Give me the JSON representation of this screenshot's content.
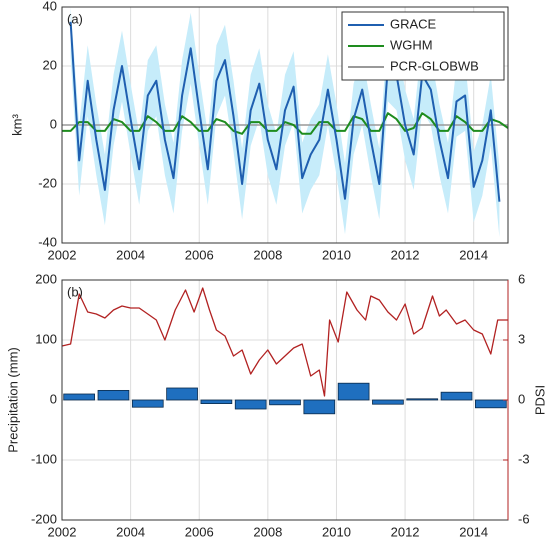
{
  "chart_data": [
    {
      "type": "line",
      "annotation": "(a)",
      "ylabel": "km³",
      "xlim": [
        2002,
        2015
      ],
      "xticks": [
        2002,
        2004,
        2006,
        2008,
        2010,
        2012,
        2014
      ],
      "ylim": [
        -40,
        40
      ],
      "yticks": [
        -40,
        -20,
        0,
        20,
        40
      ],
      "grid": true,
      "legend": "upper right",
      "series": [
        {
          "name": "GRACE",
          "color": "#1f5fb0",
          "error": 12,
          "x": [
            2002.25,
            2002.5,
            2002.75,
            2003,
            2003.25,
            2003.5,
            2003.75,
            2004,
            2004.25,
            2004.5,
            2004.75,
            2005,
            2005.25,
            2005.5,
            2005.75,
            2006,
            2006.25,
            2006.5,
            2006.75,
            2007,
            2007.25,
            2007.5,
            2007.75,
            2008,
            2008.25,
            2008.5,
            2008.75,
            2009,
            2009.25,
            2009.5,
            2009.75,
            2010,
            2010.25,
            2010.5,
            2010.75,
            2011,
            2011.25,
            2011.5,
            2011.75,
            2012,
            2012.25,
            2012.5,
            2012.75,
            2013,
            2013.25,
            2013.5,
            2013.75,
            2014,
            2014.25,
            2014.5,
            2014.75
          ],
          "values": [
            35,
            -12,
            15,
            -5,
            -22,
            5,
            20,
            2,
            -15,
            10,
            15,
            -5,
            -18,
            10,
            26,
            5,
            -15,
            15,
            22,
            3,
            -20,
            5,
            14,
            -5,
            -15,
            5,
            13,
            -18,
            -10,
            -5,
            12,
            -5,
            -25,
            2,
            12,
            -5,
            -20,
            20,
            17,
            0,
            -10,
            17,
            12,
            -5,
            -18,
            8,
            10,
            -21,
            -12,
            5,
            -26
          ]
        },
        {
          "name": "WGHM",
          "color": "#1e8c1e",
          "x": [
            2002,
            2002.25,
            2002.5,
            2002.75,
            2003,
            2003.25,
            2003.5,
            2003.75,
            2004,
            2004.25,
            2004.5,
            2004.75,
            2005,
            2005.25,
            2005.5,
            2005.75,
            2006,
            2006.25,
            2006.5,
            2006.75,
            2007,
            2007.25,
            2007.5,
            2007.75,
            2008,
            2008.25,
            2008.5,
            2008.75,
            2009,
            2009.25,
            2009.5,
            2009.75,
            2010,
            2010.25,
            2010.5,
            2010.75,
            2011,
            2011.25,
            2011.5,
            2011.75,
            2012,
            2012.25,
            2012.5,
            2012.75,
            2013,
            2013.25,
            2013.5,
            2013.75,
            2014,
            2014.25,
            2014.5,
            2014.75,
            2015
          ],
          "values": [
            -2,
            -2,
            1,
            1,
            -2,
            -2,
            2,
            1,
            -2,
            -2,
            3,
            1,
            -2,
            -2,
            3,
            1,
            -2,
            -2,
            2,
            1,
            -2,
            -3,
            1,
            1,
            -2,
            -2,
            1,
            0,
            -3,
            -3,
            1,
            1,
            -2,
            -2,
            3,
            2,
            -2,
            -2,
            4,
            2,
            -2,
            -1,
            4,
            2,
            -2,
            -2,
            3,
            1,
            -2,
            -2,
            2,
            1,
            -1
          ]
        },
        {
          "name": "PCR-GLOBWB",
          "color": "#999999",
          "x": [
            2002,
            2015
          ],
          "values": [
            0,
            0
          ]
        }
      ]
    },
    {
      "type": "bar",
      "annotation": "(b)",
      "ylabel": "Precipitation (mm)",
      "y2label": "PDSI",
      "xlim": [
        2002,
        2015
      ],
      "xticks": [
        2002,
        2004,
        2006,
        2008,
        2010,
        2012,
        2014
      ],
      "ylim": [
        -200,
        200
      ],
      "yticks": [
        -200,
        -100,
        0,
        100,
        200
      ],
      "y2lim": [
        -6,
        6
      ],
      "y2ticks": [
        -6,
        -3,
        0,
        3,
        6
      ],
      "grid": true,
      "series": [
        {
          "type": "bar",
          "color": "#1f6fbf",
          "x": [
            2002.5,
            2003.5,
            2004.5,
            2005.5,
            2006.5,
            2007.5,
            2008.5,
            2009.5,
            2010.5,
            2011.5,
            2012.5,
            2013.5,
            2014.5
          ],
          "values": [
            10,
            16,
            -12,
            20,
            -6,
            -15,
            -8,
            -23,
            28,
            -7,
            2,
            13,
            -13
          ]
        },
        {
          "type": "line",
          "axis": "y2",
          "color": "#b22222",
          "x": [
            2002,
            2002.25,
            2002.5,
            2002.75,
            2003,
            2003.25,
            2003.5,
            2003.75,
            2004,
            2004.25,
            2004.5,
            2004.75,
            2005,
            2005.3,
            2005.6,
            2005.85,
            2006.1,
            2006.3,
            2006.5,
            2006.75,
            2007,
            2007.25,
            2007.5,
            2007.75,
            2008,
            2008.25,
            2008.5,
            2008.75,
            2009,
            2009.25,
            2009.5,
            2009.65,
            2009.8,
            2010.05,
            2010.3,
            2010.6,
            2010.85,
            2011,
            2011.25,
            2011.5,
            2011.75,
            2012,
            2012.25,
            2012.5,
            2012.8,
            2013,
            2013.2,
            2013.5,
            2013.75,
            2014,
            2014.25,
            2014.5,
            2014.7,
            2015
          ],
          "values": [
            2.7,
            2.8,
            5.3,
            4.4,
            4.3,
            4.1,
            4.5,
            4.7,
            4.6,
            4.6,
            4.3,
            4.0,
            3.0,
            4.5,
            5.5,
            4.4,
            5.6,
            4.5,
            3.5,
            3.2,
            2.2,
            2.5,
            1.3,
            2.0,
            2.5,
            1.8,
            2.2,
            2.6,
            2.8,
            1.2,
            1.5,
            0.2,
            4.0,
            2.9,
            5.4,
            4.5,
            4.0,
            5.2,
            5.0,
            4.4,
            4.0,
            4.8,
            3.3,
            3.6,
            5.2,
            4.2,
            4.5,
            3.8,
            4.0,
            3.5,
            3.3,
            2.3,
            4.0,
            4.0
          ]
        }
      ]
    }
  ]
}
